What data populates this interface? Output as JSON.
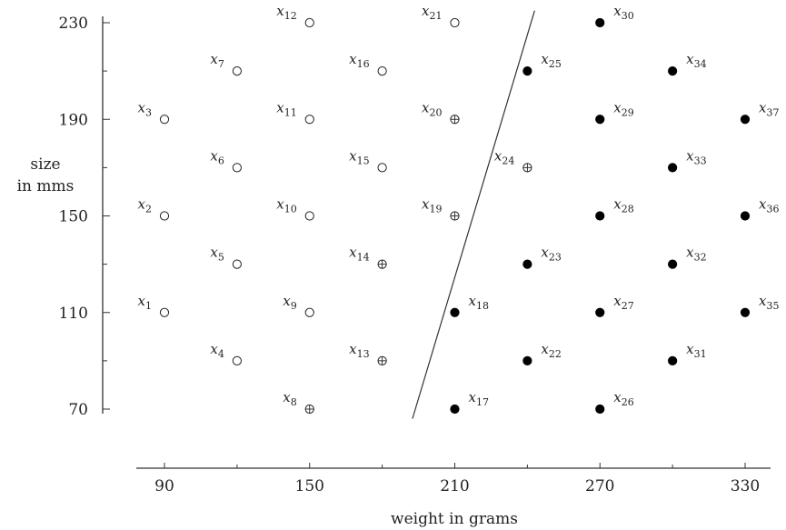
{
  "chart_data": {
    "type": "scatter",
    "title": "",
    "xlabel": "weight in grams",
    "ylabel_lines": [
      "size",
      "in mms"
    ],
    "xlim": [
      90,
      330
    ],
    "ylim": [
      70,
      230
    ],
    "xticks": [
      90,
      150,
      210,
      270,
      330
    ],
    "yticks": [
      70,
      110,
      150,
      190,
      230
    ],
    "grid": false,
    "marker_styles": {
      "open": "hollow circle",
      "crossed": "circle with cross",
      "filled": "solid black circle"
    },
    "points": [
      {
        "label": "x",
        "sub": "1",
        "x": 90,
        "y": 110,
        "marker": "open"
      },
      {
        "label": "x",
        "sub": "2",
        "x": 90,
        "y": 150,
        "marker": "open"
      },
      {
        "label": "x",
        "sub": "3",
        "x": 90,
        "y": 190,
        "marker": "open"
      },
      {
        "label": "x",
        "sub": "4",
        "x": 120,
        "y": 90,
        "marker": "open"
      },
      {
        "label": "x",
        "sub": "5",
        "x": 120,
        "y": 130,
        "marker": "open"
      },
      {
        "label": "x",
        "sub": "6",
        "x": 120,
        "y": 170,
        "marker": "open"
      },
      {
        "label": "x",
        "sub": "7",
        "x": 120,
        "y": 210,
        "marker": "open"
      },
      {
        "label": "x",
        "sub": "8",
        "x": 150,
        "y": 70,
        "marker": "crossed"
      },
      {
        "label": "x",
        "sub": "9",
        "x": 150,
        "y": 110,
        "marker": "open"
      },
      {
        "label": "x",
        "sub": "10",
        "x": 150,
        "y": 150,
        "marker": "open"
      },
      {
        "label": "x",
        "sub": "11",
        "x": 150,
        "y": 190,
        "marker": "open"
      },
      {
        "label": "x",
        "sub": "12",
        "x": 150,
        "y": 230,
        "marker": "open"
      },
      {
        "label": "x",
        "sub": "13",
        "x": 180,
        "y": 90,
        "marker": "crossed"
      },
      {
        "label": "x",
        "sub": "14",
        "x": 180,
        "y": 130,
        "marker": "crossed"
      },
      {
        "label": "x",
        "sub": "15",
        "x": 180,
        "y": 170,
        "marker": "open"
      },
      {
        "label": "x",
        "sub": "16",
        "x": 180,
        "y": 210,
        "marker": "open"
      },
      {
        "label": "x",
        "sub": "17",
        "x": 210,
        "y": 70,
        "marker": "filled"
      },
      {
        "label": "x",
        "sub": "18",
        "x": 210,
        "y": 110,
        "marker": "filled"
      },
      {
        "label": "x",
        "sub": "19",
        "x": 210,
        "y": 150,
        "marker": "crossed"
      },
      {
        "label": "x",
        "sub": "20",
        "x": 210,
        "y": 190,
        "marker": "crossed"
      },
      {
        "label": "x",
        "sub": "21",
        "x": 210,
        "y": 230,
        "marker": "open"
      },
      {
        "label": "x",
        "sub": "22",
        "x": 240,
        "y": 90,
        "marker": "filled"
      },
      {
        "label": "x",
        "sub": "23",
        "x": 240,
        "y": 130,
        "marker": "filled"
      },
      {
        "label": "x",
        "sub": "24",
        "x": 240,
        "y": 170,
        "marker": "crossed"
      },
      {
        "label": "x",
        "sub": "25",
        "x": 240,
        "y": 210,
        "marker": "filled"
      },
      {
        "label": "x",
        "sub": "26",
        "x": 270,
        "y": 70,
        "marker": "filled"
      },
      {
        "label": "x",
        "sub": "27",
        "x": 270,
        "y": 110,
        "marker": "filled"
      },
      {
        "label": "x",
        "sub": "28",
        "x": 270,
        "y": 150,
        "marker": "filled"
      },
      {
        "label": "x",
        "sub": "29",
        "x": 270,
        "y": 190,
        "marker": "filled"
      },
      {
        "label": "x",
        "sub": "30",
        "x": 270,
        "y": 230,
        "marker": "filled"
      },
      {
        "label": "x",
        "sub": "31",
        "x": 300,
        "y": 90,
        "marker": "filled"
      },
      {
        "label": "x",
        "sub": "32",
        "x": 300,
        "y": 130,
        "marker": "filled"
      },
      {
        "label": "x",
        "sub": "33",
        "x": 300,
        "y": 170,
        "marker": "filled"
      },
      {
        "label": "x",
        "sub": "34",
        "x": 300,
        "y": 210,
        "marker": "filled"
      },
      {
        "label": "x",
        "sub": "35",
        "x": 330,
        "y": 110,
        "marker": "filled"
      },
      {
        "label": "x",
        "sub": "36",
        "x": 330,
        "y": 150,
        "marker": "filled"
      },
      {
        "label": "x",
        "sub": "37",
        "x": 330,
        "y": 190,
        "marker": "filled"
      }
    ],
    "decision_line": {
      "x1": 192.5,
      "y1": 66,
      "x2": 243,
      "y2": 235
    },
    "colors": {
      "ink": "#222222",
      "filled": "#000000",
      "open_fill": "#ffffff"
    }
  }
}
